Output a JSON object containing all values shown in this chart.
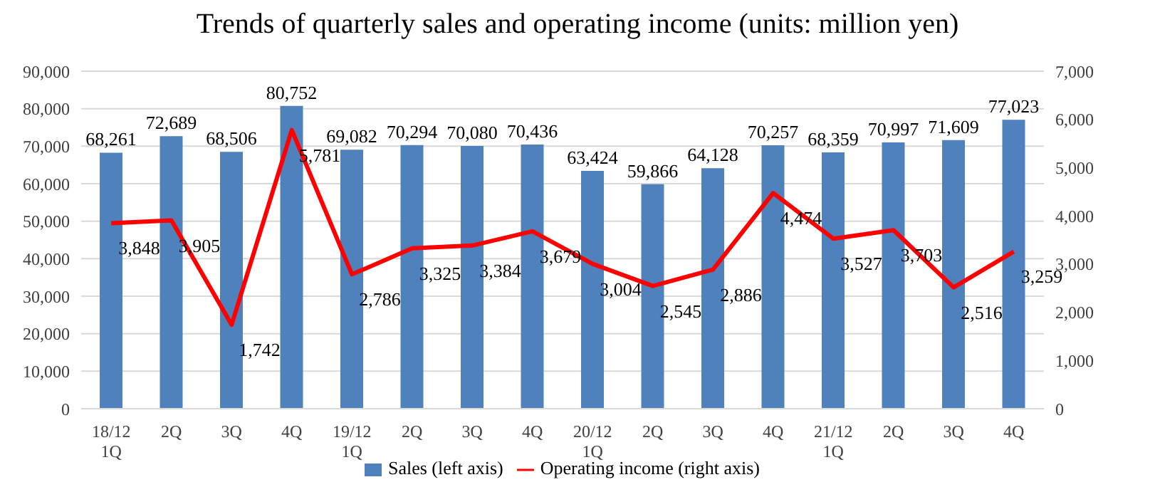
{
  "chart_data": {
    "type": "bar",
    "title": "Trends of quarterly sales and operating income (units: million yen)",
    "categories": [
      "18/12\n1Q",
      "2Q",
      "3Q",
      "4Q",
      "19/12\n1Q",
      "2Q",
      "3Q",
      "4Q",
      "20/12\n1Q",
      "2Q",
      "3Q",
      "4Q",
      "21/12\n1Q",
      "2Q",
      "3Q",
      "4Q"
    ],
    "series": [
      {
        "name": "Sales (left axis)",
        "color": "#4f81bd",
        "values": [
          68261,
          72689,
          68506,
          80752,
          69082,
          70294,
          70080,
          70436,
          63424,
          59866,
          64128,
          70257,
          68359,
          70997,
          71609,
          77023
        ],
        "value_labels": [
          "68,261",
          "72,689",
          "68,506",
          "80,752",
          "69,082",
          "70,294",
          "70,080",
          "70,436",
          "63,424",
          "59,866",
          "64,128",
          "70,257",
          "68,359",
          "70,997",
          "71,609",
          "77,023"
        ]
      },
      {
        "name": "Operating income (right axis)",
        "type": "line",
        "axis": "y2",
        "color": "#ff0000",
        "values": [
          3848,
          3905,
          1742,
          5781,
          2786,
          3325,
          3384,
          3679,
          3004,
          2545,
          2886,
          4474,
          3527,
          3703,
          2516,
          3259
        ],
        "value_labels": [
          "3,848",
          "3,905",
          "1,742",
          "5,781",
          "2,786",
          "3,325",
          "3,384",
          "3,679",
          "3,004",
          "2,545",
          "2,886",
          "4,474",
          "3,527",
          "3,703",
          "2,516",
          "3,259"
        ]
      }
    ],
    "ylim": [
      0,
      90000
    ],
    "yticks": [
      0,
      {
        "value": 10000,
        "label": "10,000"
      },
      {
        "value": 20000,
        "label": "20,000"
      },
      {
        "value": 30000,
        "label": "30,000"
      },
      {
        "value": 40000,
        "label": "40,000"
      },
      {
        "value": 50000,
        "label": "50,000"
      },
      {
        "value": 60000,
        "label": "60,000"
      },
      {
        "value": 70000,
        "label": "70,000"
      },
      {
        "value": 80000,
        "label": "80,000"
      },
      {
        "value": 90000,
        "label": "90,000"
      }
    ],
    "y2lim": [
      0,
      7000
    ],
    "y2ticks": [
      0,
      {
        "value": 1000,
        "label": "1,000"
      },
      {
        "value": 2000,
        "label": "2,000"
      },
      {
        "value": 3000,
        "label": "3,000"
      },
      {
        "value": 4000,
        "label": "4,000"
      },
      {
        "value": 5000,
        "label": "5,000"
      },
      {
        "value": 6000,
        "label": "6,000"
      },
      {
        "value": 7000,
        "label": "7,000"
      }
    ],
    "grid": "y",
    "legend": "bottom",
    "marker": "none",
    "line_style": "solid"
  }
}
